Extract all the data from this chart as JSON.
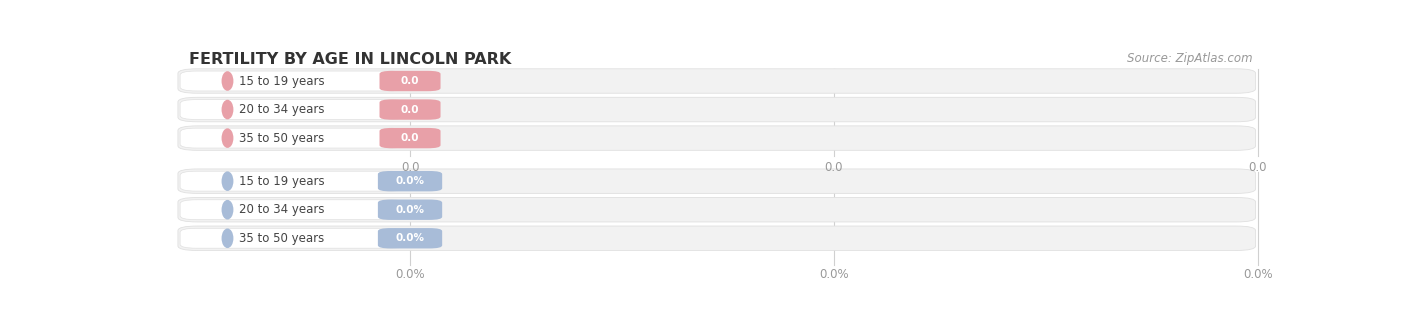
{
  "title": "FERTILITY BY AGE IN LINCOLN PARK",
  "source_text": "Source: ZipAtlas.com",
  "top_section_labels": [
    "15 to 19 years",
    "20 to 34 years",
    "35 to 50 years"
  ],
  "top_section_values": [
    "0.0",
    "0.0",
    "0.0"
  ],
  "top_axis_ticks": [
    "0.0",
    "0.0",
    "0.0"
  ],
  "bottom_section_labels": [
    "15 to 19 years",
    "20 to 34 years",
    "35 to 50 years"
  ],
  "bottom_section_values": [
    "0.0%",
    "0.0%",
    "0.0%"
  ],
  "bottom_axis_ticks": [
    "0.0%",
    "0.0%",
    "0.0%"
  ],
  "pink_color": "#e8a0a8",
  "blue_color": "#a8bcd8",
  "row_bg_color": "#f2f2f2",
  "row_edge_color": "#e0e0e0",
  "bar_white": "#ffffff",
  "axis_line_color": "#d0d0d0",
  "title_color": "#333333",
  "source_color": "#999999",
  "tick_color": "#999999",
  "label_color": "#444444",
  "background_color": "#ffffff",
  "fig_width": 14.06,
  "fig_height": 3.31
}
